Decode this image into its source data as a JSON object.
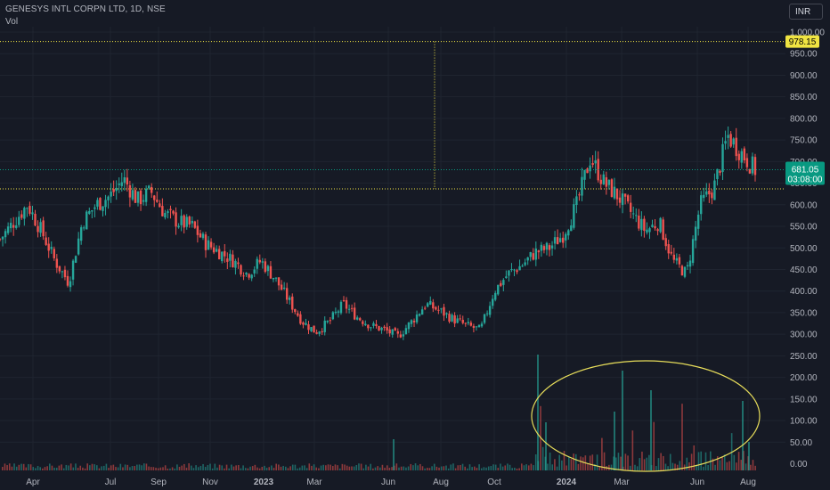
{
  "header": {
    "symbol_line": "GENESYS INTL CORPN LTD, 1D, NSE",
    "indicator": "Vol"
  },
  "currency": "INR",
  "price_axis": {
    "ticks": [
      1000,
      950,
      900,
      850,
      800,
      750,
      700,
      650,
      600,
      550,
      500,
      450,
      400,
      350,
      300,
      250,
      200,
      150,
      100,
      50,
      0
    ],
    "tick_labels": [
      "1,000.00",
      "950.00",
      "900.00",
      "850.00",
      "800.00",
      "750.00",
      "700.00",
      "650.00",
      "600.00",
      "550.00",
      "500.00",
      "450.00",
      "400.00",
      "350.00",
      "300.00",
      "250.00",
      "200.00",
      "150.00",
      "100.00",
      "50.00",
      "0.00"
    ]
  },
  "time_axis": {
    "labels": [
      "Apr",
      "Jul",
      "Sep",
      "Nov",
      "2023",
      "Mar",
      "Jun",
      "Aug",
      "Oct",
      "2024",
      "Mar",
      "Jun",
      "Aug"
    ]
  },
  "markers": {
    "hline_label": "978.15",
    "last_price": "681.05",
    "countdown": "03:08:00"
  },
  "colors": {
    "up": "#26a69a",
    "down": "#ef5350",
    "hline": "#f0e442",
    "ellipse": "#e6dc5a",
    "last_price_bg": "#089981"
  },
  "chart_data": {
    "type": "candlestick",
    "title": "GENESYS INTL CORPN LTD, 1D, NSE",
    "ylim": [
      0,
      1030
    ],
    "price_path": [
      [
        "Mar",
        520
      ],
      [
        "Apr",
        560
      ],
      [
        "Apr",
        600
      ],
      [
        "May",
        540
      ],
      [
        "May",
        470
      ],
      [
        "Jun",
        420
      ],
      [
        "Jul",
        560
      ],
      [
        "Jul",
        600
      ],
      [
        "Aug",
        620
      ],
      [
        "Aug",
        660
      ],
      [
        "Sep",
        610
      ],
      [
        "Sep",
        630
      ],
      [
        "Oct",
        580
      ],
      [
        "Nov",
        560
      ],
      [
        "Nov",
        550
      ],
      [
        "Dec",
        510
      ],
      [
        "2023",
        490
      ],
      [
        "Jan",
        470
      ],
      [
        "Feb",
        440
      ],
      [
        "Feb",
        470
      ],
      [
        "Mar",
        430
      ],
      [
        "Mar",
        380
      ],
      [
        "Apr",
        330
      ],
      [
        "May",
        305
      ],
      [
        "May",
        330
      ],
      [
        "Jun",
        370
      ],
      [
        "Jun",
        340
      ],
      [
        "Jul",
        320
      ],
      [
        "Jul",
        310
      ],
      [
        "Aug",
        295
      ],
      [
        "Aug",
        330
      ],
      [
        "Sep",
        370
      ],
      [
        "Sep",
        355
      ],
      [
        "Oct",
        335
      ],
      [
        "Oct",
        320
      ],
      [
        "Nov",
        310
      ],
      [
        "Dec",
        400
      ],
      [
        "Dec",
        440
      ],
      [
        "2024",
        460
      ],
      [
        "Jan",
        490
      ],
      [
        "Feb",
        500
      ],
      [
        "Feb",
        530
      ],
      [
        "Mar",
        600
      ],
      [
        "Mar",
        710
      ],
      [
        "Mar",
        650
      ],
      [
        "Apr",
        620
      ],
      [
        "Apr",
        580
      ],
      [
        "May",
        540
      ],
      [
        "May",
        560
      ],
      [
        "Jun",
        470
      ],
      [
        "Jun",
        440
      ],
      [
        "Jul",
        600
      ],
      [
        "Jul",
        640
      ],
      [
        "Jul",
        760
      ],
      [
        "Aug",
        720
      ],
      [
        "Aug",
        681
      ]
    ],
    "horizontal_line": 978.15,
    "last_price": 681.05,
    "volume_panel": {
      "ylim": [
        0,
        260
      ],
      "peak_values": [
        255,
        220,
        205,
        160,
        145,
        95,
        80
      ]
    }
  }
}
